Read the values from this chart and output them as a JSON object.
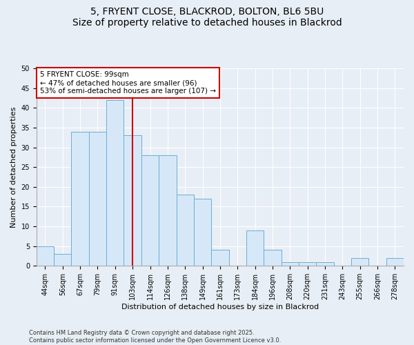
{
  "title": "5, FRYENT CLOSE, BLACKROD, BOLTON, BL6 5BU",
  "subtitle": "Size of property relative to detached houses in Blackrod",
  "xlabel": "Distribution of detached houses by size in Blackrod",
  "ylabel": "Number of detached properties",
  "categories": [
    "44sqm",
    "56sqm",
    "67sqm",
    "79sqm",
    "91sqm",
    "103sqm",
    "114sqm",
    "126sqm",
    "138sqm",
    "149sqm",
    "161sqm",
    "173sqm",
    "184sqm",
    "196sqm",
    "208sqm",
    "220sqm",
    "231sqm",
    "243sqm",
    "255sqm",
    "266sqm",
    "278sqm"
  ],
  "values": [
    5,
    3,
    34,
    34,
    42,
    33,
    28,
    28,
    18,
    17,
    4,
    0,
    9,
    4,
    1,
    1,
    1,
    0,
    2,
    0,
    2
  ],
  "bar_color": "#d6e8f7",
  "bar_edge_color": "#6aaed6",
  "red_line_x": 5.0,
  "annotation_text": "5 FRYENT CLOSE: 99sqm\n← 47% of detached houses are smaller (96)\n53% of semi-detached houses are larger (107) →",
  "annotation_box_facecolor": "#ffffff",
  "annotation_box_edgecolor": "#cc0000",
  "red_line_color": "#cc0000",
  "ylim": [
    0,
    50
  ],
  "yticks": [
    0,
    5,
    10,
    15,
    20,
    25,
    30,
    35,
    40,
    45,
    50
  ],
  "footer": "Contains HM Land Registry data © Crown copyright and database right 2025.\nContains public sector information licensed under the Open Government Licence v3.0.",
  "background_color": "#e8eef5",
  "plot_background": "#e8eef5",
  "grid_color": "#ffffff",
  "title_fontsize": 10,
  "axis_label_fontsize": 8,
  "tick_fontsize": 7,
  "annotation_fontsize": 7.5,
  "footer_fontsize": 6
}
